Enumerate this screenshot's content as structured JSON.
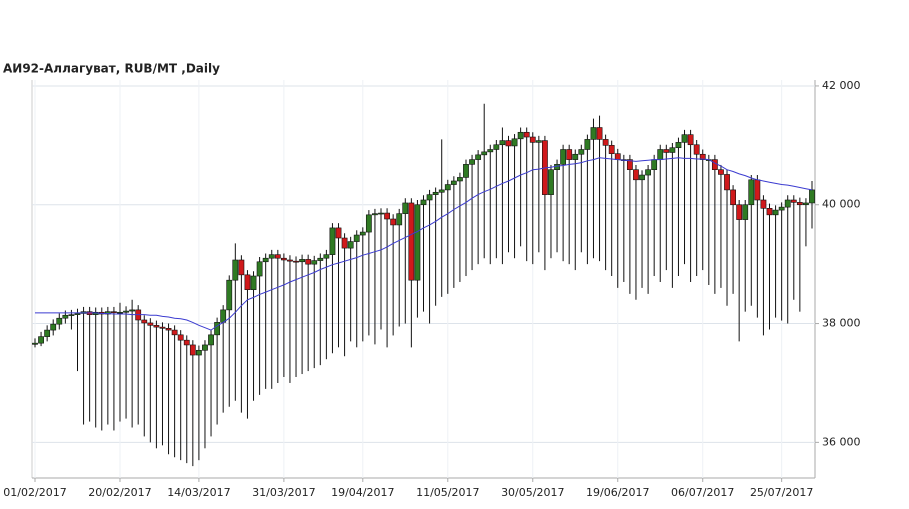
{
  "chart_data": {
    "type": "candlestick",
    "title": "АИ92-Аллагуват,  RUB/MT ,Daily",
    "categories": [
      "01/02/2017",
      null,
      null,
      null,
      null,
      null,
      null,
      null,
      null,
      null,
      null,
      null,
      null,
      null,
      "20/02/2017",
      null,
      null,
      null,
      null,
      null,
      null,
      null,
      null,
      null,
      null,
      null,
      null,
      "14/03/2017",
      null,
      null,
      null,
      null,
      null,
      null,
      null,
      null,
      null,
      null,
      null,
      null,
      null,
      "31/03/2017",
      null,
      null,
      null,
      null,
      null,
      null,
      null,
      null,
      null,
      null,
      null,
      null,
      "19/04/2017",
      null,
      null,
      null,
      null,
      null,
      null,
      null,
      null,
      null,
      null,
      null,
      null,
      null,
      "11/05/2017",
      null,
      null,
      null,
      null,
      null,
      null,
      null,
      null,
      null,
      null,
      null,
      null,
      null,
      "30/05/2017",
      null,
      null,
      null,
      null,
      null,
      null,
      null,
      null,
      null,
      null,
      null,
      null,
      null,
      "19/06/2017",
      null,
      null,
      null,
      null,
      null,
      null,
      null,
      null,
      null,
      null,
      null,
      null,
      null,
      "06/07/2017",
      null,
      null,
      null,
      null,
      null,
      null,
      null,
      null,
      null,
      null,
      null,
      null,
      "25/07/2017",
      null,
      null,
      null,
      null,
      null
    ],
    "open": [
      37650,
      37670,
      37780,
      37890,
      37990,
      38090,
      38140,
      38150,
      38170,
      38200,
      38150,
      38190,
      38160,
      38200,
      38190,
      38190,
      38210,
      38230,
      38060,
      38010,
      37970,
      37940,
      37920,
      37890,
      37810,
      37720,
      37640,
      37470,
      37550,
      37640,
      37810,
      38020,
      38230,
      38730,
      39070,
      38820,
      38570,
      38800,
      39040,
      39100,
      39160,
      39100,
      39070,
      39050,
      39040,
      39080,
      39000,
      39060,
      39100,
      39160,
      39610,
      39440,
      39270,
      39380,
      39490,
      39540,
      39830,
      39850,
      39860,
      39760,
      39660,
      39850,
      40030,
      38730,
      40000,
      40080,
      40170,
      40210,
      40250,
      40340,
      40400,
      40460,
      40680,
      40760,
      40840,
      40890,
      40930,
      41010,
      41080,
      40990,
      41110,
      41220,
      41140,
      41050,
      41080,
      40170,
      40590,
      40680,
      40930,
      40760,
      40850,
      40930,
      41100,
      41300,
      41100,
      41000,
      40860,
      40760,
      40760,
      40590,
      40420,
      40500,
      40590,
      40760,
      40930,
      40880,
      40960,
      41050,
      41180,
      41010,
      40850,
      40760,
      40760,
      40590,
      40510,
      40250,
      40000,
      39750,
      40000,
      40420,
      40080,
      39940,
      39830,
      39910,
      39960,
      40080,
      40040,
      40000,
      40030
    ],
    "high": [
      37750,
      37860,
      37970,
      38070,
      38170,
      38220,
      38230,
      38250,
      38280,
      38280,
      38270,
      38270,
      38280,
      38280,
      38350,
      38290,
      38400,
      38310,
      38140,
      38090,
      38050,
      38020,
      38000,
      37970,
      37890,
      37800,
      37720,
      37630,
      37720,
      37890,
      38100,
      38310,
      38810,
      39350,
      39150,
      38900,
      38880,
      39120,
      39180,
      39240,
      39240,
      39180,
      39150,
      39130,
      39160,
      39160,
      39140,
      39180,
      39240,
      39690,
      39690,
      39520,
      39460,
      39570,
      39620,
      39910,
      39930,
      39940,
      39940,
      39840,
      39930,
      40110,
      40110,
      40080,
      40160,
      40250,
      40290,
      41100,
      40420,
      40480,
      40540,
      40760,
      40840,
      40920,
      41700,
      41010,
      41090,
      41300,
      41160,
      41190,
      41300,
      41300,
      41220,
      41160,
      41160,
      40670,
      40760,
      41010,
      41010,
      40930,
      41010,
      41180,
      41450,
      41500,
      41180,
      41080,
      40940,
      40840,
      40840,
      40670,
      40580,
      40670,
      40840,
      41010,
      41010,
      41040,
      41130,
      41260,
      41260,
      41090,
      40930,
      40840,
      40840,
      40670,
      40590,
      40330,
      40080,
      40080,
      40500,
      40500,
      40160,
      40020,
      39990,
      40040,
      40160,
      40160,
      40120,
      40110,
      40400
    ],
    "low": [
      37600,
      37620,
      37700,
      37800,
      37900,
      38000,
      37900,
      37200,
      36300,
      36350,
      36250,
      36200,
      36300,
      36200,
      36350,
      36400,
      36250,
      36300,
      36100,
      36000,
      35900,
      35950,
      35800,
      35750,
      35700,
      35650,
      35600,
      35700,
      35900,
      36100,
      36300,
      36500,
      36600,
      36700,
      36500,
      36400,
      36700,
      36800,
      36900,
      36900,
      37000,
      37100,
      37000,
      37100,
      37150,
      37200,
      37250,
      37300,
      37400,
      37500,
      37600,
      37450,
      37700,
      37600,
      37700,
      37800,
      37650,
      37900,
      37600,
      37800,
      37950,
      38000,
      37600,
      38100,
      38200,
      38000,
      38300,
      38450,
      38500,
      38600,
      38700,
      38800,
      38900,
      39000,
      39100,
      39000,
      39100,
      39000,
      39200,
      39100,
      39300,
      39050,
      39000,
      39200,
      38900,
      39100,
      39200,
      39050,
      39000,
      38900,
      39200,
      39000,
      39100,
      39050,
      38900,
      38800,
      38600,
      38700,
      38500,
      38400,
      38600,
      38500,
      38800,
      38700,
      38900,
      38600,
      38800,
      39000,
      38700,
      38800,
      38900,
      38650,
      38500,
      38600,
      38300,
      38500,
      37700,
      38200,
      38300,
      38100,
      37800,
      37900,
      38100,
      38050,
      38000,
      38400,
      38200,
      39300,
      39600
    ],
    "close": [
      37670,
      37780,
      37890,
      37990,
      38090,
      38140,
      38150,
      38170,
      38200,
      38150,
      38190,
      38160,
      38200,
      38190,
      38190,
      38210,
      38230,
      38060,
      38010,
      37970,
      37940,
      37920,
      37890,
      37810,
      37720,
      37640,
      37470,
      37550,
      37640,
      37810,
      38020,
      38230,
      38730,
      39070,
      38820,
      38570,
      38800,
      39040,
      39100,
      39160,
      39100,
      39070,
      39050,
      39040,
      39080,
      39000,
      39060,
      39100,
      39160,
      39610,
      39440,
      39270,
      39380,
      39490,
      39540,
      39830,
      39850,
      39860,
      39760,
      39660,
      39850,
      40030,
      38730,
      40000,
      40080,
      40170,
      40210,
      40250,
      40340,
      40400,
      40460,
      40680,
      40760,
      40840,
      40890,
      40930,
      41010,
      41080,
      40990,
      41110,
      41220,
      41140,
      41050,
      41080,
      40170,
      40590,
      40680,
      40930,
      40760,
      40850,
      40930,
      41100,
      41300,
      41100,
      41000,
      40860,
      40760,
      40760,
      40590,
      40420,
      40500,
      40590,
      40760,
      40930,
      40880,
      40960,
      41050,
      41180,
      41010,
      40850,
      40760,
      40760,
      40590,
      40510,
      40250,
      40000,
      39750,
      40000,
      40420,
      40080,
      39940,
      39830,
      39910,
      39960,
      40080,
      40040,
      40000,
      40030,
      40250
    ],
    "ma": {
      "color": "#3b3bd0",
      "values": [
        38180,
        38180,
        38180,
        38180,
        38180,
        38180,
        38180,
        38180,
        38180,
        38180,
        38180,
        38170,
        38170,
        38160,
        38160,
        38160,
        38150,
        38150,
        38150,
        38140,
        38140,
        38120,
        38110,
        38090,
        38080,
        38060,
        38020,
        37970,
        37930,
        37890,
        37960,
        38020,
        38090,
        38190,
        38300,
        38400,
        38440,
        38490,
        38530,
        38570,
        38610,
        38650,
        38700,
        38740,
        38780,
        38820,
        38860,
        38910,
        38950,
        38990,
        39020,
        39050,
        39080,
        39110,
        39150,
        39180,
        39210,
        39240,
        39290,
        39350,
        39400,
        39450,
        39500,
        39550,
        39610,
        39660,
        39720,
        39790,
        39850,
        39920,
        39980,
        40040,
        40110,
        40170,
        40220,
        40260,
        40310,
        40360,
        40400,
        40450,
        40500,
        40540,
        40590,
        40600,
        40620,
        40630,
        40650,
        40660,
        40680,
        40690,
        40710,
        40740,
        40760,
        40790,
        40780,
        40770,
        40760,
        40750,
        40740,
        40730,
        40740,
        40750,
        40760,
        40760,
        40770,
        40780,
        40790,
        40780,
        40780,
        40770,
        40770,
        40760,
        40700,
        40650,
        40590,
        40560,
        40520,
        40490,
        40450,
        40420,
        40400,
        40380,
        40360,
        40340,
        40330,
        40310,
        40290,
        40270,
        40250
      ]
    },
    "up_color": "#2f7a23",
    "down_color": "#d0191b",
    "ylim": [
      35400,
      42100
    ],
    "yticks": [
      {
        "value": 36000,
        "label": "36 000"
      },
      {
        "value": 38000,
        "label": "38 000"
      },
      {
        "value": 40000,
        "label": "40 000"
      },
      {
        "value": 42000,
        "label": "42 000"
      }
    ],
    "grid": true
  }
}
